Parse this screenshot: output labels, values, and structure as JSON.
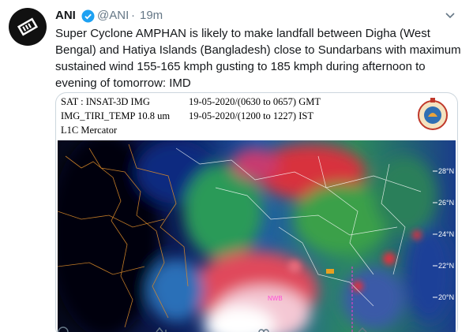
{
  "tweet": {
    "name": "ANI",
    "handle": "@ANI",
    "separator": "·",
    "time": "19m",
    "text": "Super Cyclone AMPHAN is likely to make landfall between Digha (West Bengal) and Hatiya Islands (Bangladesh) close to Sundarbans with maximum sustained wind 155-165 kmph gusting to 185 kmph during afternoon to evening of tomorrow: IMD"
  },
  "image": {
    "sat": "SAT : INSAT-3D IMG",
    "gmt": "19-05-2020/(0630 to 0657) GMT",
    "band": "IMG_TIRI_TEMP 10.8 um",
    "ist": "19-05-2020/(1200 to 1227) IST",
    "projection": "L1C Mercator",
    "latitudes": [
      "28°N",
      "26°N",
      "24°N",
      "22°N",
      "20°N"
    ],
    "region_label": "NWB"
  }
}
